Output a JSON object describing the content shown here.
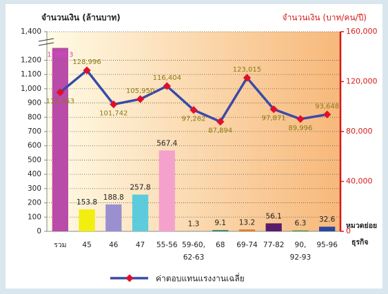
{
  "chart_data": {
    "type": "bar",
    "y_label": "จำนวนเงิน (ล้านบาท)",
    "y2_label": "จำนวนเงิน (บาท/คน/ปี)",
    "x_label": [
      "หมวดย่อย",
      "ธุรกิจ"
    ],
    "categories": [
      [
        "รวม"
      ],
      [
        "45"
      ],
      [
        "46"
      ],
      [
        "47"
      ],
      [
        "55-56"
      ],
      [
        "59-60,",
        "62-63"
      ],
      [
        "68"
      ],
      [
        "69-74"
      ],
      [
        "77-82"
      ],
      [
        "90,",
        "92-93"
      ],
      [
        "95-96"
      ]
    ],
    "ylim": [
      0,
      1400
    ],
    "yticks": [
      0,
      100,
      200,
      300,
      400,
      500,
      600,
      700,
      800,
      900,
      {
        "value": 1000,
        "label": "1,000"
      },
      {
        "value": 1100,
        "label": "1,100"
      },
      {
        "value": 1200,
        "label": "1,200"
      },
      {
        "value": 1400,
        "label": "1,400"
      }
    ],
    "y2lim": [
      0,
      160000
    ],
    "y2ticks": [
      0,
      {
        "value": 40000,
        "label": "40,000"
      },
      {
        "value": 80000,
        "label": "80,000"
      },
      {
        "value": 120000,
        "label": "120,000"
      },
      {
        "value": 160000,
        "label": "160,000"
      }
    ],
    "grid": true,
    "series": [
      {
        "type": "bar",
        "colors": [
          "#b84ca8",
          "#f2ee10",
          "#9a90d0",
          "#5cccdc",
          "#f4a2cc",
          "#3aa0a0",
          "#2c8a6a",
          "#e07a30",
          "#5a1c6c",
          "#3a9a40",
          "#2848a0"
        ],
        "values": [
          1286.3,
          153.8,
          188.8,
          257.8,
          567.4,
          1.3,
          9.1,
          13.2,
          56.1,
          6.3,
          32.6
        ],
        "value_labels": [
          "1,286.3",
          "153.8",
          "188.8",
          "257.8",
          "567.4",
          "1.3",
          "9.1",
          "13.2",
          "56.1",
          "6.3",
          "32.6"
        ]
      },
      {
        "type": "line",
        "name": "ค่าตอบแทนแรงงานเฉลี่ย",
        "axis": "y2",
        "color": "#3a4aa8",
        "marker_color": "#e0102a",
        "values": [
          111353,
          128996,
          101742,
          105950,
          116404,
          97262,
          87894,
          123015,
          97871,
          89996,
          93648
        ],
        "value_labels": [
          "111,353",
          "128,996",
          "101,742",
          "105,950",
          "116,404",
          "97,262",
          "87,894",
          "123,015",
          "97,871",
          "89,996",
          "93,648"
        ]
      }
    ]
  }
}
